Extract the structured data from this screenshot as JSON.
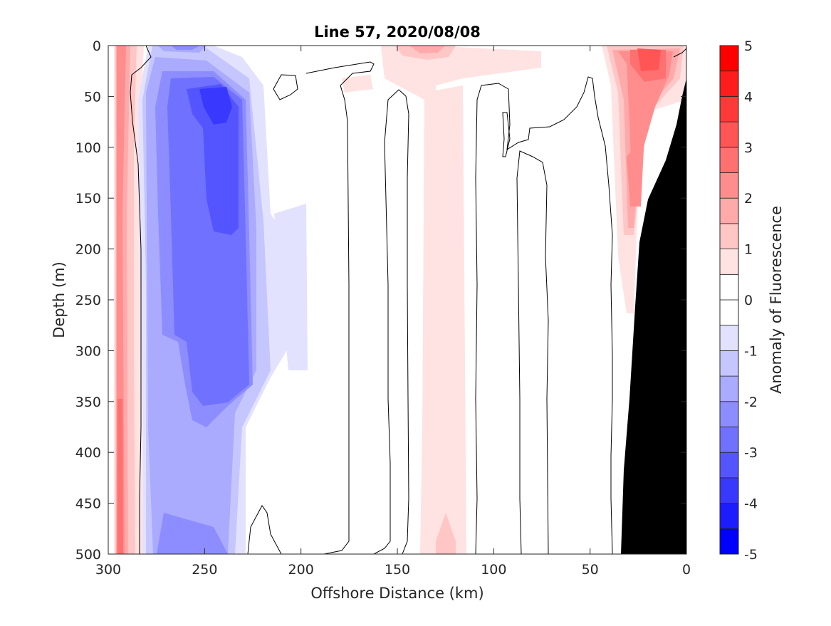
{
  "chart_data": {
    "type": "heatmap",
    "subtype": "filled-contour section",
    "title": "Line 57, 2020/08/08",
    "xlabel": "Offshore Distance (km)",
    "ylabel": "Depth (m)",
    "xlim": [
      300,
      0
    ],
    "ylim": [
      500,
      0
    ],
    "x_reversed": true,
    "y_reversed": true,
    "xticks": [
      300,
      250,
      200,
      150,
      100,
      50,
      0
    ],
    "yticks": [
      0,
      50,
      100,
      150,
      200,
      250,
      300,
      350,
      400,
      450,
      500
    ],
    "colorbar": {
      "label": "Anomaly of Fluorescence",
      "range": [
        -5,
        5
      ],
      "step": 0.5,
      "ticks": [
        5,
        4,
        3,
        2,
        1,
        0,
        -1,
        -2,
        -3,
        -4,
        -5
      ],
      "colors": [
        "#0000ff",
        "#1c1cff",
        "#3838ff",
        "#5555ff",
        "#7171ff",
        "#8d8dff",
        "#aaaaff",
        "#c6c6ff",
        "#e2e2ff",
        "#ffffff",
        "#ffffff",
        "#ffe2e2",
        "#ffc6c6",
        "#ffaaaa",
        "#ff8d8d",
        "#ff7171",
        "#ff5555",
        "#ff3838",
        "#ff1c1c",
        "#ff0000"
      ]
    },
    "zero_contour": true,
    "bottom_mask_color": "#000000",
    "features": [
      {
        "name": "nearshore positive anomaly band",
        "x_range_km": [
          298,
          287
        ],
        "depth_range_m": [
          0,
          500
        ],
        "peak": 2
      },
      {
        "name": "negative anomaly core",
        "x_range_km": [
          265,
          228
        ],
        "depth_range_m": [
          20,
          500
        ],
        "peak": -3
      },
      {
        "name": "positive anomaly band",
        "x_range_km": [
          145,
          110
        ],
        "depth_range_m": [
          0,
          500
        ],
        "peak": 1.5
      },
      {
        "name": "shelf positive anomaly",
        "x_range_km": [
          40,
          5
        ],
        "depth_range_m": [
          0,
          300
        ],
        "peak": 2.5
      }
    ]
  }
}
